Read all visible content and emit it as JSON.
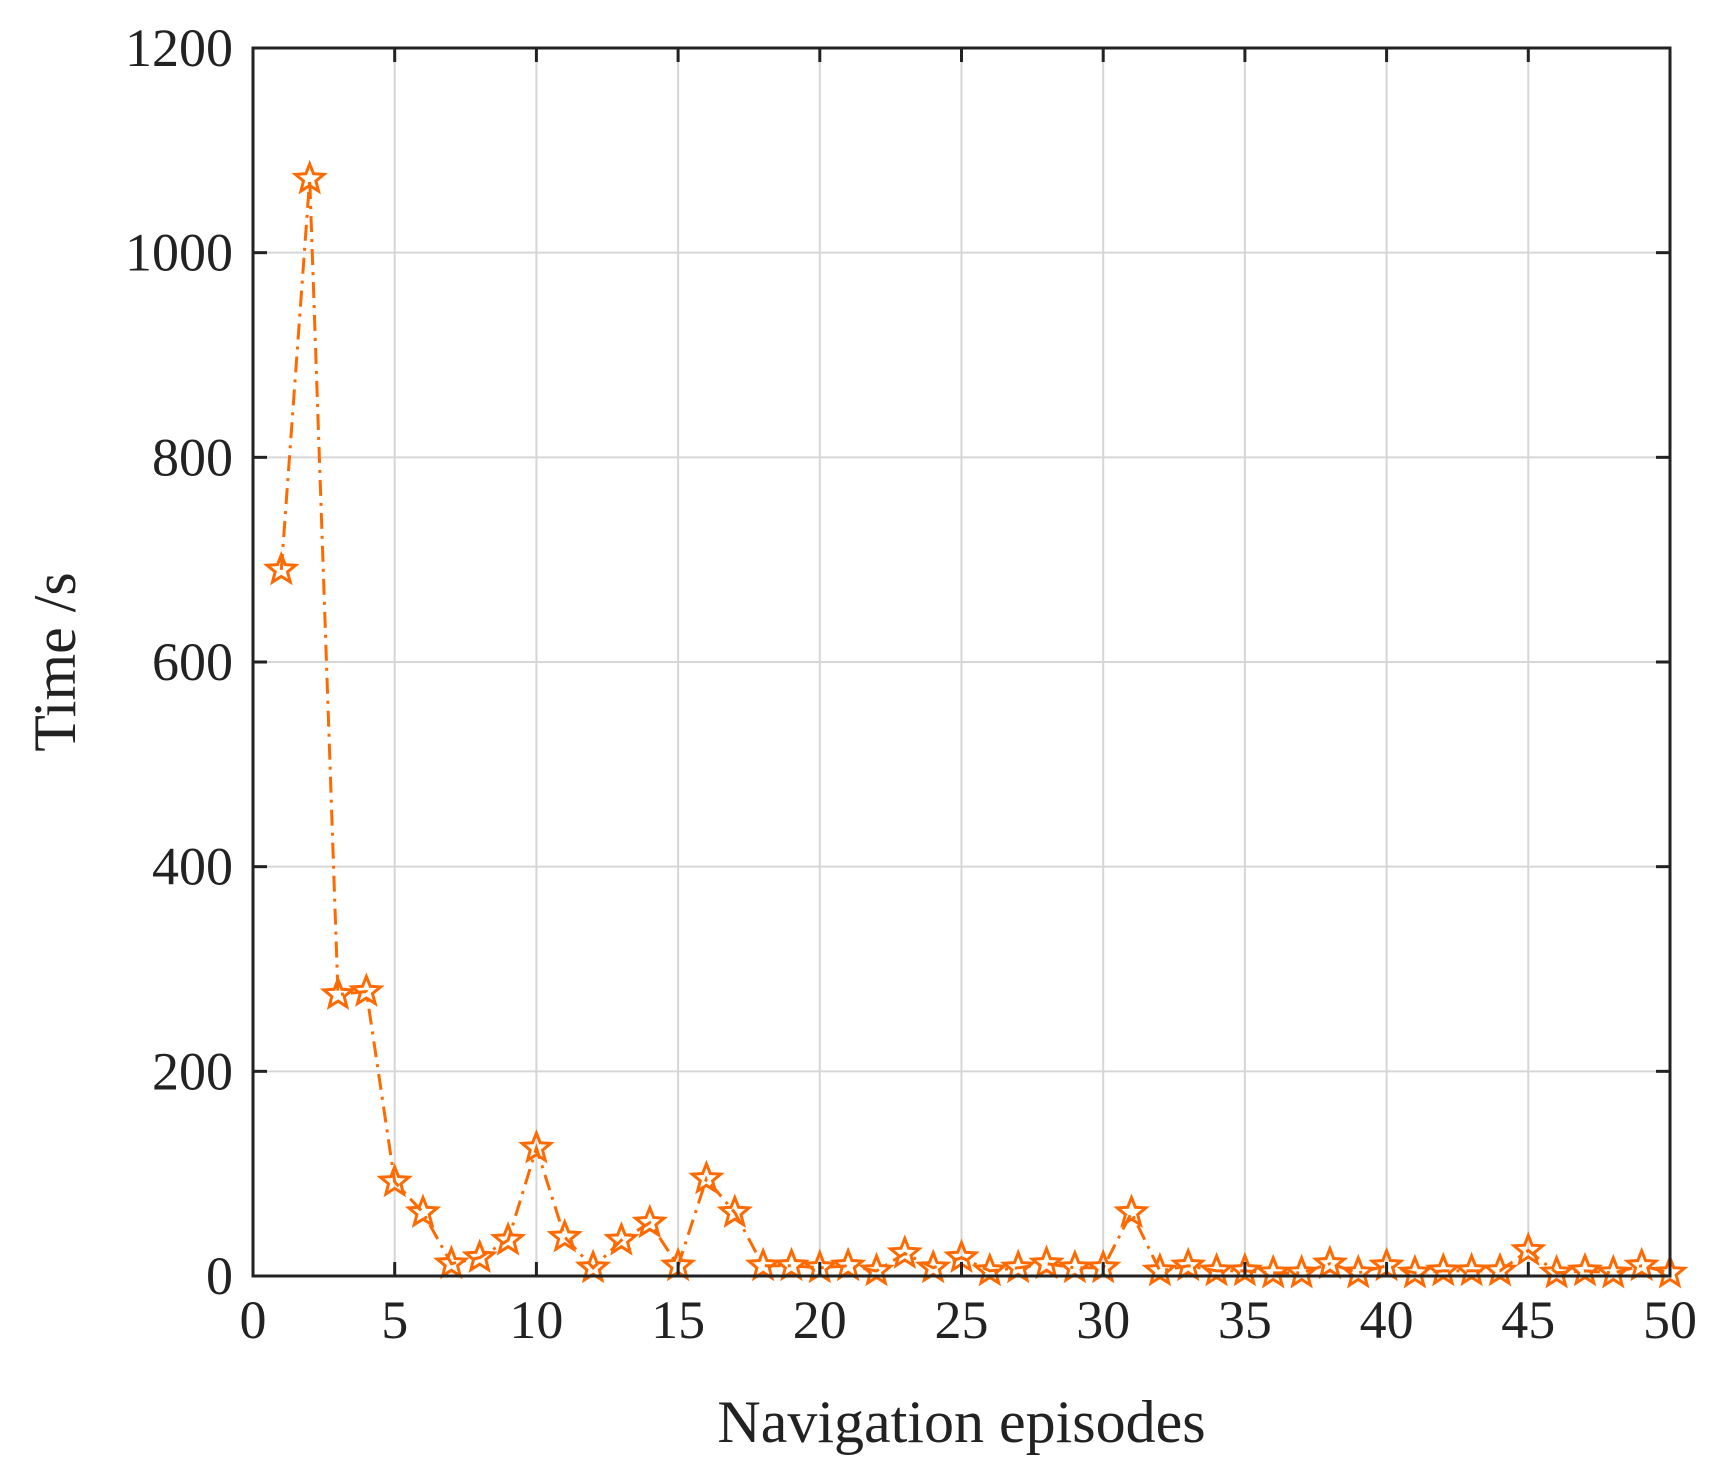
{
  "chart_data": {
    "type": "line",
    "title": "",
    "xlabel": "Navigation episodes",
    "ylabel": "Time /s",
    "xlim": [
      0,
      50
    ],
    "ylim": [
      0,
      1200
    ],
    "xticks": [
      0,
      5,
      10,
      15,
      20,
      25,
      30,
      35,
      40,
      45,
      50
    ],
    "yticks": [
      0,
      200,
      400,
      600,
      800,
      1000,
      1200
    ],
    "grid": true,
    "legend": "none",
    "series": [
      {
        "color": "#FF6A00",
        "marker": "star",
        "line_style": "dash-dot",
        "x": [
          1,
          2,
          3,
          4,
          5,
          6,
          7,
          8,
          9,
          10,
          11,
          12,
          13,
          14,
          15,
          16,
          17,
          18,
          19,
          20,
          21,
          22,
          23,
          24,
          25,
          26,
          27,
          28,
          29,
          30,
          31,
          32,
          33,
          34,
          35,
          36,
          37,
          38,
          39,
          40,
          41,
          42,
          43,
          44,
          45,
          46,
          47,
          48,
          49,
          50
        ],
        "y": [
          690,
          1072,
          275,
          278,
          92,
          62,
          12,
          18,
          35,
          125,
          38,
          8,
          35,
          52,
          10,
          95,
          62,
          10,
          10,
          8,
          10,
          5,
          22,
          8,
          18,
          5,
          8,
          12,
          8,
          8,
          62,
          5,
          10,
          5,
          5,
          3,
          3,
          12,
          3,
          10,
          3,
          5,
          5,
          5,
          25,
          3,
          5,
          3,
          10,
          3
        ]
      }
    ]
  }
}
